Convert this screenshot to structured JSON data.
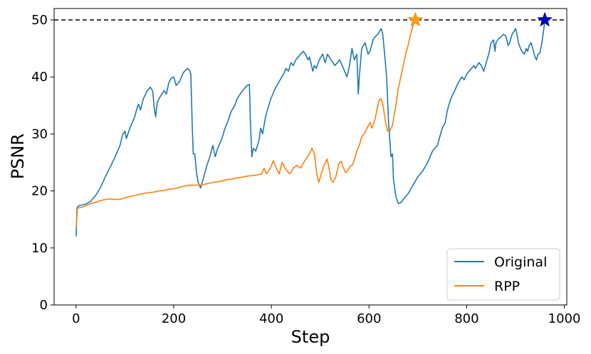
{
  "chart_data": {
    "type": "line",
    "xlabel": "Step",
    "ylabel": "PSNR",
    "xlim": [
      -45,
      1005
    ],
    "ylim": [
      0,
      52
    ],
    "xticks": [
      0,
      200,
      400,
      600,
      800,
      1000
    ],
    "yticks": [
      0,
      10,
      20,
      30,
      40,
      50
    ],
    "grid": false,
    "legend_position": "lower-right",
    "threshold": {
      "y": 50,
      "style": "dashed",
      "color": "#000000"
    },
    "series": [
      {
        "name": "Original",
        "color": "#1f77b4",
        "points": [
          [
            0,
            12
          ],
          [
            2,
            17
          ],
          [
            5,
            17.4
          ],
          [
            20,
            17.7
          ],
          [
            30,
            18.2
          ],
          [
            40,
            19.2
          ],
          [
            50,
            20.6
          ],
          [
            60,
            22.5
          ],
          [
            70,
            24.2
          ],
          [
            80,
            26
          ],
          [
            90,
            28
          ],
          [
            95,
            29.8
          ],
          [
            100,
            30.5
          ],
          [
            103,
            29.2
          ],
          [
            110,
            31
          ],
          [
            120,
            33
          ],
          [
            125,
            34.6
          ],
          [
            128,
            35.2
          ],
          [
            132,
            34.2
          ],
          [
            137,
            36
          ],
          [
            145,
            37.5
          ],
          [
            152,
            38.2
          ],
          [
            157,
            37.5
          ],
          [
            160,
            34.5
          ],
          [
            163,
            33
          ],
          [
            166,
            35.5
          ],
          [
            172,
            36.5
          ],
          [
            180,
            37.6
          ],
          [
            185,
            37
          ],
          [
            190,
            39
          ],
          [
            195,
            39.8
          ],
          [
            200,
            40
          ],
          [
            205,
            38.5
          ],
          [
            212,
            39.2
          ],
          [
            220,
            40.8
          ],
          [
            228,
            41.5
          ],
          [
            232,
            41.2
          ],
          [
            235,
            40.5
          ],
          [
            238,
            31
          ],
          [
            240,
            26.5
          ],
          [
            243,
            26.5
          ],
          [
            247,
            23
          ],
          [
            250,
            21.5
          ],
          [
            255,
            20.5
          ],
          [
            260,
            22
          ],
          [
            268,
            24.5
          ],
          [
            275,
            26.3
          ],
          [
            280,
            28
          ],
          [
            285,
            26
          ],
          [
            290,
            27.5
          ],
          [
            298,
            29
          ],
          [
            305,
            31
          ],
          [
            312,
            32.5
          ],
          [
            318,
            34
          ],
          [
            325,
            35
          ],
          [
            330,
            36.2
          ],
          [
            340,
            37.5
          ],
          [
            350,
            38.5
          ],
          [
            355,
            38.7
          ],
          [
            357,
            32
          ],
          [
            360,
            26
          ],
          [
            363,
            27.5
          ],
          [
            368,
            27
          ],
          [
            375,
            29
          ],
          [
            378,
            31
          ],
          [
            382,
            30
          ],
          [
            388,
            33
          ],
          [
            398,
            36
          ],
          [
            408,
            38
          ],
          [
            418,
            39.5
          ],
          [
            425,
            40.5
          ],
          [
            430,
            41.5
          ],
          [
            435,
            41
          ],
          [
            440,
            42.5
          ],
          [
            445,
            42
          ],
          [
            450,
            43
          ],
          [
            455,
            43.5
          ],
          [
            460,
            44
          ],
          [
            465,
            44.5
          ],
          [
            470,
            44
          ],
          [
            475,
            43
          ],
          [
            478,
            43.5
          ],
          [
            485,
            41
          ],
          [
            488,
            42
          ],
          [
            492,
            41.5
          ],
          [
            498,
            43
          ],
          [
            505,
            44
          ],
          [
            510,
            42.5
          ],
          [
            515,
            44
          ],
          [
            522,
            43
          ],
          [
            530,
            42
          ],
          [
            535,
            42.5
          ],
          [
            540,
            43
          ],
          [
            545,
            42
          ],
          [
            555,
            40
          ],
          [
            560,
            42
          ],
          [
            565,
            45
          ],
          [
            570,
            43
          ],
          [
            575,
            44
          ],
          [
            578,
            37
          ],
          [
            580,
            40
          ],
          [
            585,
            45
          ],
          [
            592,
            46
          ],
          [
            598,
            44
          ],
          [
            602,
            44.5
          ],
          [
            608,
            46.5
          ],
          [
            612,
            47
          ],
          [
            618,
            47.5
          ],
          [
            625,
            48.5
          ],
          [
            628,
            47.5
          ],
          [
            632,
            44
          ],
          [
            636,
            40
          ],
          [
            640,
            32
          ],
          [
            645,
            26
          ],
          [
            648,
            26.5
          ],
          [
            650,
            22
          ],
          [
            655,
            19
          ],
          [
            660,
            17.8
          ],
          [
            666,
            18
          ],
          [
            670,
            18.5
          ],
          [
            675,
            19
          ],
          [
            680,
            19.5
          ],
          [
            690,
            21
          ],
          [
            700,
            22.5
          ],
          [
            710,
            23.5
          ],
          [
            720,
            25
          ],
          [
            730,
            27
          ],
          [
            740,
            28
          ],
          [
            745,
            29.5
          ],
          [
            750,
            31
          ],
          [
            756,
            32
          ],
          [
            760,
            34
          ],
          [
            765,
            35.5
          ],
          [
            770,
            36.7
          ],
          [
            775,
            37.5
          ],
          [
            780,
            38.5
          ],
          [
            785,
            39.3
          ],
          [
            790,
            40
          ],
          [
            795,
            39.5
          ],
          [
            800,
            40.5
          ],
          [
            805,
            41
          ],
          [
            810,
            41.5
          ],
          [
            815,
            42
          ],
          [
            818,
            41.5
          ],
          [
            820,
            41.8
          ],
          [
            825,
            42.5
          ],
          [
            830,
            42
          ],
          [
            835,
            41
          ],
          [
            840,
            42.5
          ],
          [
            845,
            44
          ],
          [
            850,
            46
          ],
          [
            855,
            46.5
          ],
          [
            858,
            44.5
          ],
          [
            860,
            46
          ],
          [
            865,
            46.7
          ],
          [
            870,
            47
          ],
          [
            875,
            47.5
          ],
          [
            880,
            47.2
          ],
          [
            885,
            45.5
          ],
          [
            888,
            46
          ],
          [
            893,
            47.5
          ],
          [
            897,
            48
          ],
          [
            900,
            48.5
          ],
          [
            903,
            47.5
          ],
          [
            906,
            46
          ],
          [
            910,
            45
          ],
          [
            913,
            44.5
          ],
          [
            918,
            44
          ],
          [
            922,
            45
          ],
          [
            925,
            44.5
          ],
          [
            928,
            45.5
          ],
          [
            932,
            46
          ],
          [
            935,
            45
          ],
          [
            940,
            43.5
          ],
          [
            943,
            43
          ],
          [
            946,
            44
          ],
          [
            950,
            44.2
          ],
          [
            954,
            46
          ],
          [
            958,
            48.5
          ],
          [
            960,
            50
          ]
        ]
      },
      {
        "name": "RPP",
        "color": "#ff7f0e",
        "points": [
          [
            0,
            13.5
          ],
          [
            3,
            17
          ],
          [
            10,
            17.1
          ],
          [
            20,
            17.4
          ],
          [
            30,
            17.8
          ],
          [
            40,
            18
          ],
          [
            50,
            18.3
          ],
          [
            60,
            18.5
          ],
          [
            70,
            18.6
          ],
          [
            80,
            18.5
          ],
          [
            90,
            18.5
          ],
          [
            100,
            18.8
          ],
          [
            110,
            19
          ],
          [
            120,
            19.2
          ],
          [
            130,
            19.4
          ],
          [
            140,
            19.6
          ],
          [
            150,
            19.7
          ],
          [
            160,
            19.8
          ],
          [
            170,
            20
          ],
          [
            180,
            20.1
          ],
          [
            190,
            20.3
          ],
          [
            200,
            20.4
          ],
          [
            210,
            20.6
          ],
          [
            220,
            20.8
          ],
          [
            230,
            21
          ],
          [
            240,
            21
          ],
          [
            250,
            21
          ],
          [
            260,
            21.1
          ],
          [
            270,
            21.3
          ],
          [
            280,
            21.5
          ],
          [
            290,
            21.6
          ],
          [
            300,
            21.8
          ],
          [
            310,
            22
          ],
          [
            320,
            22.1
          ],
          [
            330,
            22.3
          ],
          [
            340,
            22.4
          ],
          [
            350,
            22.6
          ],
          [
            360,
            22.7
          ],
          [
            370,
            22.8
          ],
          [
            380,
            23
          ],
          [
            385,
            24
          ],
          [
            390,
            23
          ],
          [
            398,
            24
          ],
          [
            404,
            25.3
          ],
          [
            410,
            24
          ],
          [
            416,
            23
          ],
          [
            422,
            25
          ],
          [
            428,
            24
          ],
          [
            432,
            23.5
          ],
          [
            438,
            23
          ],
          [
            445,
            24
          ],
          [
            452,
            24.5
          ],
          [
            460,
            24
          ],
          [
            465,
            24.8
          ],
          [
            470,
            25.5
          ],
          [
            478,
            26.5
          ],
          [
            483,
            27.5
          ],
          [
            488,
            26.5
          ],
          [
            493,
            23
          ],
          [
            497,
            21.5
          ],
          [
            502,
            23
          ],
          [
            508,
            24.5
          ],
          [
            514,
            25.6
          ],
          [
            518,
            24
          ],
          [
            522,
            22
          ],
          [
            526,
            21.5
          ],
          [
            532,
            22.5
          ],
          [
            538,
            24.8
          ],
          [
            543,
            25.2
          ],
          [
            547,
            24.2
          ],
          [
            552,
            23.2
          ],
          [
            558,
            23.8
          ],
          [
            563,
            24.5
          ],
          [
            566,
            24.5
          ],
          [
            570,
            25.5
          ],
          [
            575,
            27
          ],
          [
            580,
            28
          ],
          [
            585,
            29.5
          ],
          [
            590,
            30
          ],
          [
            596,
            31
          ],
          [
            602,
            32
          ],
          [
            606,
            31
          ],
          [
            612,
            32.5
          ],
          [
            617,
            34.5
          ],
          [
            620,
            35.8
          ],
          [
            624,
            36.2
          ],
          [
            628,
            35.3
          ],
          [
            634,
            32
          ],
          [
            638,
            30.5
          ],
          [
            642,
            30.5
          ],
          [
            648,
            31.5
          ],
          [
            655,
            35
          ],
          [
            660,
            38
          ],
          [
            665,
            40
          ],
          [
            670,
            42
          ],
          [
            675,
            44
          ],
          [
            680,
            45.5
          ],
          [
            685,
            47.5
          ],
          [
            690,
            49
          ],
          [
            695,
            50
          ]
        ]
      }
    ],
    "markers": [
      {
        "series": "RPP",
        "x": 695,
        "y": 50,
        "shape": "star",
        "color": "#ffa500",
        "edge": "#ff7f0e"
      },
      {
        "series": "Original",
        "x": 960,
        "y": 50,
        "shape": "star",
        "color": "#0000cc",
        "edge": "#000080"
      }
    ]
  }
}
